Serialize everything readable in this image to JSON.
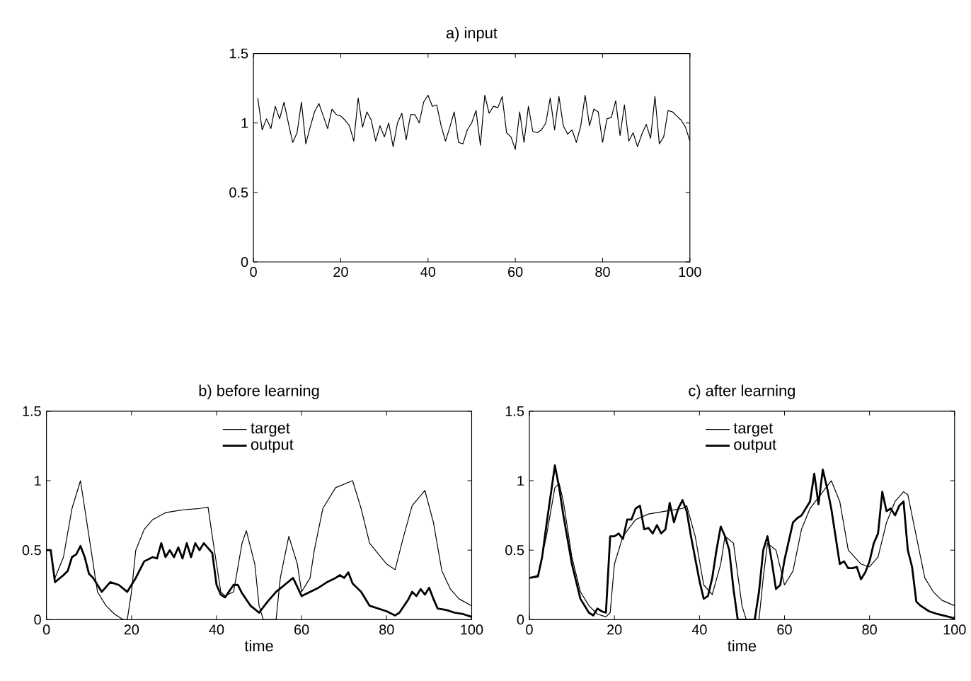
{
  "chart_data": [
    {
      "type": "line",
      "title": "a)  input",
      "xlim": [
        0,
        100
      ],
      "ylim": [
        0,
        1.5
      ],
      "xticks": [
        0,
        20,
        40,
        60,
        80,
        100
      ],
      "yticks": [
        0,
        0.5,
        1,
        1.5
      ],
      "grid": false,
      "legend": false,
      "marker": "none",
      "line_style": "solid",
      "series": [
        {
          "color": "#000000",
          "x": [
            1,
            2,
            3,
            4,
            5,
            6,
            7,
            8,
            9,
            10,
            11,
            12,
            13,
            14,
            15,
            16,
            17,
            18,
            19,
            20,
            21,
            22,
            23,
            24,
            25,
            26,
            27,
            28,
            29,
            30,
            31,
            32,
            33,
            34,
            35,
            36,
            37,
            38,
            39,
            40,
            41,
            42,
            43,
            44,
            45,
            46,
            47,
            48,
            49,
            50,
            51,
            52,
            53,
            54,
            55,
            56,
            57,
            58,
            59,
            60,
            61,
            62,
            63,
            64,
            65,
            66,
            67,
            68,
            69,
            70,
            71,
            72,
            73,
            74,
            75,
            76,
            77,
            78,
            79,
            80,
            81,
            82,
            83,
            84,
            85,
            86,
            87,
            88,
            89,
            90,
            91,
            92,
            93,
            94,
            95,
            96,
            97,
            98,
            99,
            100
          ],
          "values": [
            1.18,
            0.95,
            1.03,
            0.96,
            1.12,
            1.03,
            1.15,
            1.0,
            0.86,
            0.93,
            1.15,
            0.85,
            0.97,
            1.08,
            1.14,
            1.05,
            0.96,
            1.1,
            1.06,
            1.05,
            1.02,
            0.98,
            0.87,
            1.18,
            0.97,
            1.08,
            1.02,
            0.87,
            0.98,
            0.9,
            1.0,
            0.83,
            1.0,
            1.07,
            0.88,
            1.06,
            1.06,
            1.0,
            1.15,
            1.2,
            1.12,
            1.13,
            0.98,
            0.87,
            0.97,
            1.08,
            0.86,
            0.85,
            0.95,
            1.0,
            1.09,
            0.84,
            1.2,
            1.07,
            1.12,
            1.11,
            1.19,
            0.93,
            0.9,
            0.81,
            1.08,
            0.86,
            1.12,
            0.94,
            0.93,
            0.95,
            1.0,
            1.18,
            0.95,
            1.19,
            0.98,
            0.92,
            0.95,
            0.86,
            0.98,
            1.2,
            0.98,
            1.1,
            1.08,
            0.86,
            1.03,
            1.04,
            1.16,
            0.91,
            1.13,
            0.87,
            0.93,
            0.83,
            0.92,
            0.99,
            0.89,
            1.19,
            0.85,
            0.9,
            1.09,
            1.08,
            1.05,
            1.02,
            0.97,
            0.87
          ]
        }
      ]
    },
    {
      "type": "line",
      "title": "b)  before learning",
      "xlabel": "time",
      "xlim": [
        0,
        100
      ],
      "ylim": [
        0,
        1.5
      ],
      "xticks": [
        0,
        20,
        40,
        60,
        80,
        100
      ],
      "yticks": [
        0,
        0.5,
        1,
        1.5
      ],
      "grid": false,
      "legend": "top",
      "marker": "none",
      "line_style": "solid",
      "series": [
        {
          "name": "target",
          "color": "#000000",
          "x": [
            0,
            1,
            2,
            4,
            6,
            8,
            10,
            12,
            14,
            16,
            18,
            19,
            20,
            21,
            23,
            25,
            28,
            32,
            36,
            38,
            39,
            41,
            42,
            44,
            46,
            47,
            49,
            50,
            51,
            54,
            55,
            57,
            59,
            60,
            62,
            63,
            65,
            68,
            72,
            74,
            76,
            80,
            82,
            84,
            86,
            89,
            91,
            93,
            95,
            97,
            100
          ],
          "values": [
            0.5,
            0.5,
            0.3,
            0.45,
            0.8,
            1.0,
            0.6,
            0.2,
            0.1,
            0.04,
            0.0,
            0.0,
            0.2,
            0.5,
            0.65,
            0.72,
            0.77,
            0.79,
            0.8,
            0.81,
            0.6,
            0.2,
            0.17,
            0.2,
            0.55,
            0.64,
            0.4,
            0.1,
            0.0,
            0.0,
            0.3,
            0.6,
            0.4,
            0.2,
            0.3,
            0.5,
            0.8,
            0.95,
            1.0,
            0.8,
            0.55,
            0.4,
            0.36,
            0.6,
            0.82,
            0.93,
            0.7,
            0.35,
            0.22,
            0.15,
            0.1
          ]
        },
        {
          "name": "output",
          "color": "#000000",
          "x": [
            0,
            1,
            2,
            4,
            5,
            6,
            7,
            8,
            9,
            10,
            11,
            12,
            13,
            15,
            17,
            19,
            21,
            23,
            25,
            26,
            27,
            28,
            29,
            30,
            31,
            32,
            33,
            34,
            35,
            36,
            37,
            39,
            40,
            41,
            42,
            44,
            45,
            46,
            48,
            50,
            52,
            54,
            56,
            58,
            60,
            62,
            64,
            66,
            68,
            69,
            70,
            71,
            72,
            74,
            76,
            78,
            80,
            82,
            83,
            85,
            86,
            87,
            88,
            89,
            90,
            91,
            92,
            94,
            96,
            98,
            100
          ],
          "values": [
            0.5,
            0.5,
            0.27,
            0.32,
            0.35,
            0.45,
            0.47,
            0.53,
            0.45,
            0.33,
            0.3,
            0.25,
            0.2,
            0.27,
            0.25,
            0.2,
            0.3,
            0.42,
            0.45,
            0.44,
            0.55,
            0.45,
            0.5,
            0.45,
            0.52,
            0.44,
            0.55,
            0.45,
            0.55,
            0.5,
            0.55,
            0.48,
            0.25,
            0.18,
            0.16,
            0.25,
            0.25,
            0.19,
            0.1,
            0.05,
            0.13,
            0.2,
            0.25,
            0.3,
            0.17,
            0.2,
            0.23,
            0.27,
            0.3,
            0.32,
            0.3,
            0.34,
            0.26,
            0.2,
            0.1,
            0.08,
            0.06,
            0.03,
            0.05,
            0.14,
            0.2,
            0.17,
            0.22,
            0.18,
            0.23,
            0.15,
            0.08,
            0.07,
            0.05,
            0.04,
            0.02
          ]
        }
      ]
    },
    {
      "type": "line",
      "title": "c)  after learning",
      "xlabel": "time",
      "xlim": [
        0,
        100
      ],
      "ylim": [
        0,
        1.5
      ],
      "xticks": [
        0,
        20,
        40,
        60,
        80,
        100
      ],
      "yticks": [
        0,
        0.5,
        1,
        1.5
      ],
      "grid": false,
      "legend": "top",
      "marker": "none",
      "line_style": "solid",
      "series": [
        {
          "name": "target",
          "color": "#000000",
          "x": [
            0,
            2,
            4,
            6,
            7,
            8,
            10,
            12,
            14,
            16,
            18,
            19,
            20,
            22,
            25,
            28,
            32,
            36,
            37,
            39,
            41,
            43,
            45,
            46,
            48,
            50,
            51,
            54,
            55,
            56,
            58,
            60,
            62,
            64,
            66,
            68,
            71,
            73,
            75,
            78,
            80,
            82,
            84,
            86,
            88,
            89,
            91,
            93,
            95,
            97,
            100
          ],
          "values": [
            0.3,
            0.32,
            0.6,
            0.95,
            0.98,
            0.85,
            0.45,
            0.2,
            0.1,
            0.04,
            0.02,
            0.05,
            0.4,
            0.6,
            0.72,
            0.76,
            0.78,
            0.8,
            0.82,
            0.6,
            0.25,
            0.18,
            0.4,
            0.6,
            0.55,
            0.1,
            0.0,
            0.0,
            0.3,
            0.55,
            0.5,
            0.25,
            0.35,
            0.65,
            0.8,
            0.88,
            1.0,
            0.85,
            0.5,
            0.4,
            0.38,
            0.45,
            0.7,
            0.85,
            0.92,
            0.9,
            0.6,
            0.3,
            0.2,
            0.14,
            0.1
          ]
        },
        {
          "name": "output",
          "color": "#000000",
          "x": [
            0,
            2,
            3,
            4,
            6,
            7,
            8,
            10,
            12,
            14,
            15,
            16,
            17,
            18,
            19,
            20,
            21,
            22,
            23,
            24,
            25,
            26,
            27,
            28,
            29,
            30,
            31,
            32,
            33,
            34,
            35,
            36,
            37,
            38,
            40,
            41,
            42,
            43,
            44,
            45,
            46,
            47,
            48,
            49,
            50,
            53,
            54,
            55,
            56,
            57,
            58,
            59,
            60,
            62,
            63,
            64,
            66,
            67,
            68,
            69,
            70,
            71,
            72,
            73,
            74,
            75,
            76,
            77,
            78,
            79,
            80,
            81,
            82,
            83,
            84,
            85,
            86,
            87,
            88,
            89,
            90,
            91,
            92,
            94,
            96,
            100
          ],
          "values": [
            0.3,
            0.31,
            0.45,
            0.68,
            1.11,
            0.95,
            0.75,
            0.4,
            0.15,
            0.05,
            0.03,
            0.08,
            0.06,
            0.05,
            0.6,
            0.6,
            0.62,
            0.58,
            0.72,
            0.72,
            0.8,
            0.82,
            0.65,
            0.66,
            0.62,
            0.68,
            0.62,
            0.65,
            0.84,
            0.7,
            0.8,
            0.86,
            0.78,
            0.6,
            0.28,
            0.15,
            0.17,
            0.3,
            0.5,
            0.67,
            0.6,
            0.5,
            0.22,
            0.0,
            0.0,
            0.0,
            0.2,
            0.5,
            0.6,
            0.42,
            0.22,
            0.25,
            0.43,
            0.7,
            0.73,
            0.75,
            0.85,
            1.05,
            0.83,
            1.08,
            0.95,
            0.8,
            0.6,
            0.4,
            0.42,
            0.37,
            0.37,
            0.38,
            0.29,
            0.34,
            0.42,
            0.55,
            0.62,
            0.92,
            0.78,
            0.8,
            0.75,
            0.82,
            0.85,
            0.5,
            0.38,
            0.13,
            0.1,
            0.06,
            0.04,
            0.01
          ]
        }
      ]
    }
  ]
}
